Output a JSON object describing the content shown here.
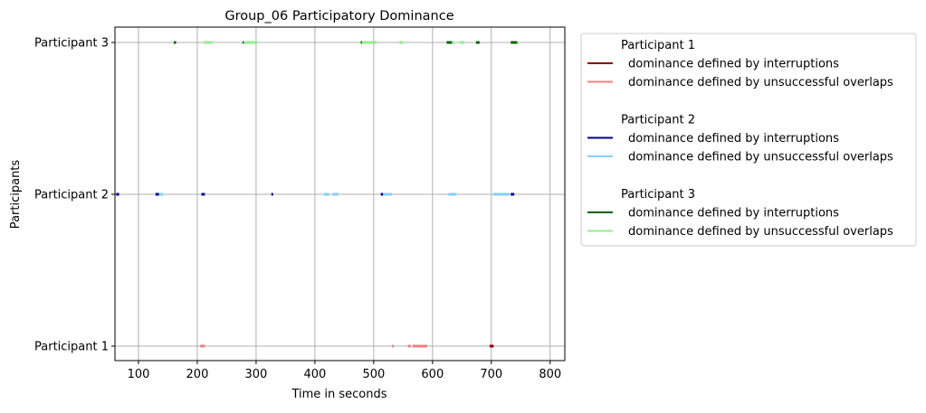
{
  "chart_data": {
    "type": "timeline",
    "title": "Group_06 Participatory Dominance",
    "xlabel": "Time in seconds",
    "ylabel": "Participants",
    "xlim": [
      60,
      825
    ],
    "xticks": [
      100,
      200,
      300,
      400,
      500,
      600,
      700,
      800
    ],
    "categories": [
      "Participant 1",
      "Participant 2",
      "Participant 3"
    ],
    "grid": true,
    "legend_position": "outside-right",
    "legend": [
      {
        "heading": "Participant 1",
        "entries": [
          {
            "label": "dominance defined by interruptions",
            "color": "#8b0000"
          },
          {
            "label": "dominance defined by unsuccessful overlaps",
            "color": "#f08080"
          }
        ]
      },
      {
        "heading": "Participant 2",
        "entries": [
          {
            "label": "dominance defined by interruptions",
            "color": "#00008b"
          },
          {
            "label": "dominance defined by unsuccessful overlaps",
            "color": "#87cefa"
          }
        ]
      },
      {
        "heading": "Participant 3",
        "entries": [
          {
            "label": "dominance defined by interruptions",
            "color": "#006400"
          },
          {
            "label": "dominance defined by unsuccessful overlaps",
            "color": "#90ee90"
          }
        ]
      }
    ],
    "series": [
      {
        "participant": "Participant 1",
        "kind": "interruptions",
        "color": "#8b0000",
        "segments": [
          [
            697,
            704
          ]
        ]
      },
      {
        "participant": "Participant 1",
        "kind": "unsuccessful overlaps",
        "color": "#f08080",
        "segments": [
          [
            205,
            213
          ],
          [
            531,
            534
          ],
          [
            558,
            563
          ],
          [
            566,
            591
          ]
        ]
      },
      {
        "participant": "Participant 2",
        "kind": "interruptions",
        "color": "#00008b",
        "segments": [
          [
            62,
            67
          ],
          [
            129,
            135
          ],
          [
            207,
            213
          ],
          [
            326,
            329
          ],
          [
            512,
            516
          ],
          [
            733,
            739
          ]
        ]
      },
      {
        "participant": "Participant 2",
        "kind": "unsuccessful overlaps",
        "color": "#87cefa",
        "segments": [
          [
            135,
            142
          ],
          [
            415,
            424
          ],
          [
            430,
            440
          ],
          [
            516,
            531
          ],
          [
            627,
            641
          ],
          [
            703,
            731
          ]
        ]
      },
      {
        "participant": "Participant 3",
        "kind": "interruptions",
        "color": "#006400",
        "segments": [
          [
            160,
            164
          ],
          [
            277,
            279
          ],
          [
            478,
            480
          ],
          [
            624,
            633
          ],
          [
            674,
            680
          ],
          [
            733,
            744
          ]
        ]
      },
      {
        "participant": "Participant 3",
        "kind": "unsuccessful overlaps",
        "color": "#90ee90",
        "segments": [
          [
            211,
            226
          ],
          [
            279,
            302
          ],
          [
            480,
            505
          ],
          [
            544,
            550
          ],
          [
            633,
            637
          ],
          [
            646,
            654
          ],
          [
            744,
            746
          ]
        ]
      }
    ]
  }
}
